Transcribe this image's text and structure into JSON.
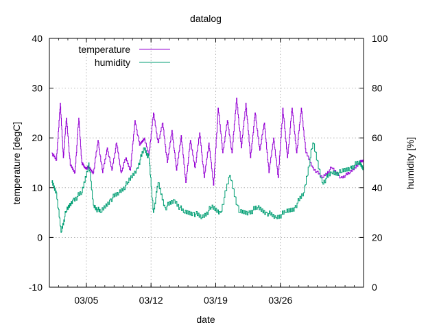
{
  "chart_data": {
    "type": "line",
    "title": "datalog",
    "xlabel": "date",
    "ylabel_left": "temperature [degC]",
    "ylabel_right": "humidity [%]",
    "x_range": [
      "2024-03-01",
      "2024-04-04"
    ],
    "x_ticks": [
      "03/05",
      "03/12",
      "03/19",
      "03/26"
    ],
    "y_left": {
      "min": -10,
      "max": 40,
      "ticks": [
        "-10",
        "0",
        "10",
        "20",
        "30",
        "40"
      ]
    },
    "y_right": {
      "min": 0,
      "max": 100,
      "ticks": [
        "0",
        "20",
        "40",
        "60",
        "80",
        "100"
      ]
    },
    "grid": true,
    "legend": "top-left",
    "series": [
      {
        "name": "temperature",
        "axis": "left",
        "color": "#9400d3",
        "x": [
          "2024-03-01",
          "2024-03-01",
          "2024-03-02",
          "2024-03-02",
          "2024-03-02",
          "2024-03-03",
          "2024-03-03",
          "2024-03-04",
          "2024-03-04",
          "2024-03-04",
          "2024-03-05",
          "2024-03-05",
          "2024-03-06",
          "2024-03-06",
          "2024-03-07",
          "2024-03-07",
          "2024-03-08",
          "2024-03-08",
          "2024-03-09",
          "2024-03-09",
          "2024-03-10",
          "2024-03-10",
          "2024-03-11",
          "2024-03-11",
          "2024-03-12",
          "2024-03-12",
          "2024-03-13",
          "2024-03-13",
          "2024-03-14",
          "2024-03-14",
          "2024-03-15",
          "2024-03-15",
          "2024-03-16",
          "2024-03-16",
          "2024-03-17",
          "2024-03-17",
          "2024-03-18",
          "2024-03-18",
          "2024-03-19",
          "2024-03-19",
          "2024-03-20",
          "2024-03-20",
          "2024-03-21",
          "2024-03-21",
          "2024-03-22",
          "2024-03-22",
          "2024-03-23",
          "2024-03-23",
          "2024-03-24",
          "2024-03-24",
          "2024-03-25",
          "2024-03-25",
          "2024-03-26",
          "2024-03-26",
          "2024-03-27",
          "2024-03-27",
          "2024-03-28",
          "2024-03-28",
          "2024-03-29",
          "2024-03-30",
          "2024-03-31",
          "2024-04-01",
          "2024-04-02",
          "2024-04-03",
          "2024-04-04"
        ],
        "y": [
          17,
          15.5,
          27,
          16,
          24,
          14.5,
          13,
          24,
          15,
          14,
          14,
          13,
          19.5,
          13,
          18,
          13.5,
          19,
          13,
          16,
          13.5,
          23.5,
          18.5,
          20,
          16.5,
          25,
          19,
          23,
          15,
          21.5,
          13.5,
          20.5,
          11,
          19.5,
          14,
          21,
          12,
          19,
          10.5,
          26,
          17,
          23.5,
          17,
          28,
          18,
          27,
          16,
          25,
          17.5,
          23,
          13,
          20,
          12,
          26,
          16,
          26,
          17,
          26,
          17,
          14,
          12,
          14,
          12,
          13,
          15,
          15.5
        ]
      },
      {
        "name": "humidity",
        "axis": "right",
        "color": "#009e73",
        "x": [
          "2024-03-01",
          "2024-03-01",
          "2024-03-02",
          "2024-03-02",
          "2024-03-03",
          "2024-03-04",
          "2024-03-05",
          "2024-03-05",
          "2024-03-06",
          "2024-03-07",
          "2024-03-08",
          "2024-03-09",
          "2024-03-10",
          "2024-03-11",
          "2024-03-11",
          "2024-03-12",
          "2024-03-12",
          "2024-03-13",
          "2024-03-14",
          "2024-03-15",
          "2024-03-16",
          "2024-03-17",
          "2024-03-18",
          "2024-03-19",
          "2024-03-20",
          "2024-03-21",
          "2024-03-22",
          "2024-03-23",
          "2024-03-24",
          "2024-03-25",
          "2024-03-26",
          "2024-03-27",
          "2024-03-28",
          "2024-03-29",
          "2024-03-30",
          "2024-03-31",
          "2024-04-01",
          "2024-04-02",
          "2024-04-03",
          "2024-04-04"
        ],
        "y": [
          42,
          38,
          22,
          30,
          35,
          38,
          50,
          33,
          30,
          35,
          38,
          42,
          48,
          56,
          52,
          30,
          42,
          32,
          35,
          30,
          30,
          28,
          32,
          30,
          45,
          30,
          30,
          32,
          30,
          28,
          30,
          32,
          38,
          58,
          42,
          46,
          46,
          48,
          50,
          48
        ]
      }
    ]
  }
}
